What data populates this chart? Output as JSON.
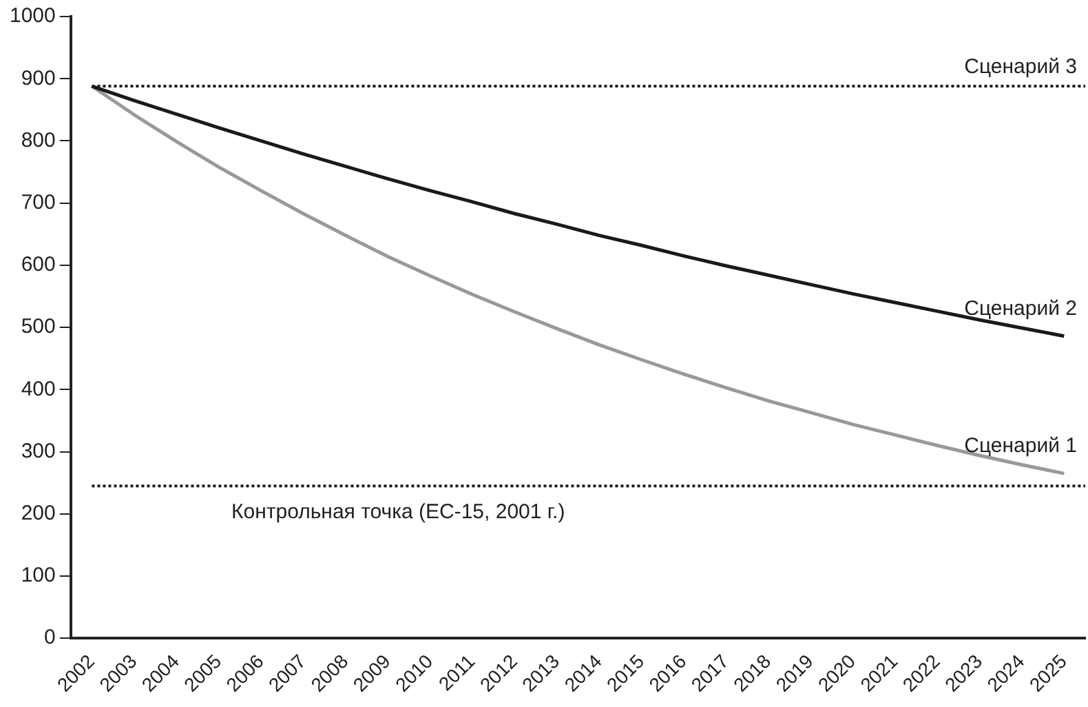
{
  "chart_data": {
    "type": "line",
    "categories": [
      "2002",
      "2003",
      "2004",
      "2005",
      "2006",
      "2007",
      "2008",
      "2009",
      "2010",
      "2011",
      "2012",
      "2013",
      "2014",
      "2015",
      "2016",
      "2017",
      "2018",
      "2019",
      "2020",
      "2021",
      "2022",
      "2023",
      "2024",
      "2025"
    ],
    "series": [
      {
        "name": "Сценарий 2",
        "color": "#1a1a1a",
        "values": [
          888,
          865,
          843,
          821,
          800,
          779,
          759,
          739,
          720,
          702,
          683,
          666,
          648,
          632,
          615,
          599,
          584,
          569,
          554,
          540,
          526,
          512,
          499,
          486
        ]
      },
      {
        "name": "Сценарий 1",
        "color": "#999999",
        "values": [
          888,
          842,
          799,
          758,
          720,
          683,
          648,
          614,
          583,
          553,
          525,
          498,
          472,
          448,
          425,
          403,
          382,
          363,
          344,
          327,
          310,
          294,
          279,
          265
        ]
      }
    ],
    "ylim": [
      0,
      1000
    ],
    "yticks": [
      0,
      100,
      200,
      300,
      400,
      500,
      600,
      700,
      800,
      900,
      1000
    ],
    "grid": false,
    "legend": false,
    "marker": "none",
    "line_style": "solid",
    "ref_lines": [
      {
        "axis": "y",
        "value": 888,
        "label": "Сценарий 3",
        "color": "#1a1a1a",
        "line_style": "dotted"
      },
      {
        "axis": "y",
        "value": 245,
        "label": "Контрольная точка (ЕС-15, 2001 г.)",
        "color": "#1a1a1a",
        "line_style": "dotted"
      }
    ]
  }
}
